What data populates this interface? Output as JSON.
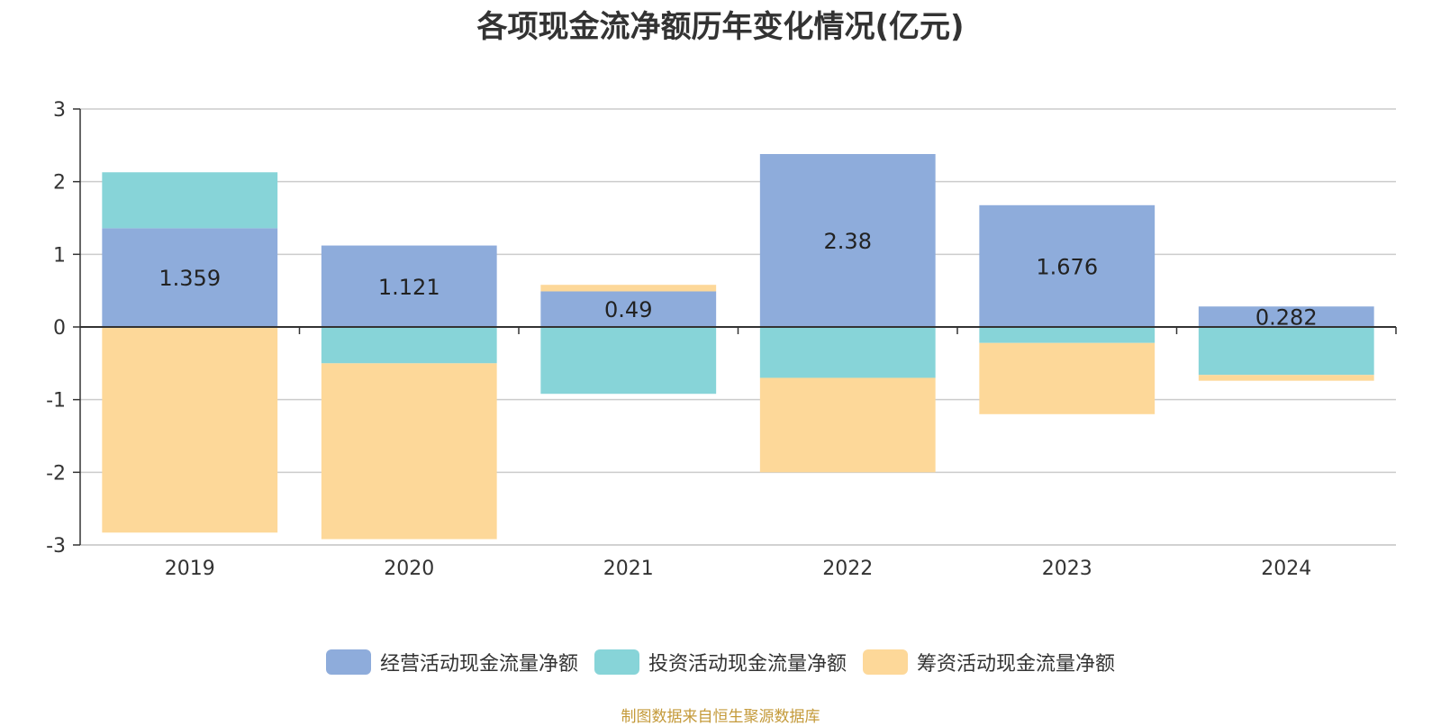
{
  "title": "各项现金流净额历年变化情况(亿元)",
  "source": "制图数据来自恒生聚源数据库",
  "colors": {
    "operating": "#8eacdb",
    "investing": "#87d4d8",
    "financing": "#fdd899"
  },
  "chart_data": {
    "type": "bar",
    "stacked": true,
    "title": "各项现金流净额历年变化情况(亿元)",
    "categories": [
      "2019",
      "2020",
      "2021",
      "2022",
      "2023",
      "2024"
    ],
    "series": [
      {
        "name": "经营活动现金流量净额",
        "values": [
          1.359,
          1.121,
          0.49,
          2.38,
          1.676,
          0.282
        ],
        "labels": [
          "1.359",
          "1.121",
          "0.49",
          "2.38",
          "1.676",
          "0.282"
        ]
      },
      {
        "name": "投资活动现金流量净额",
        "values": [
          0.77,
          -0.5,
          -0.92,
          -0.7,
          -0.22,
          -0.66
        ]
      },
      {
        "name": "筹资活动现金流量净额",
        "values": [
          -2.83,
          -2.42,
          0.09,
          -1.3,
          -0.98,
          -0.08
        ]
      }
    ],
    "ylim": [
      -3,
      3
    ],
    "yticks": [
      3,
      2,
      1,
      0,
      -1,
      -2,
      -3
    ],
    "grid": true,
    "legend": "bottom"
  }
}
